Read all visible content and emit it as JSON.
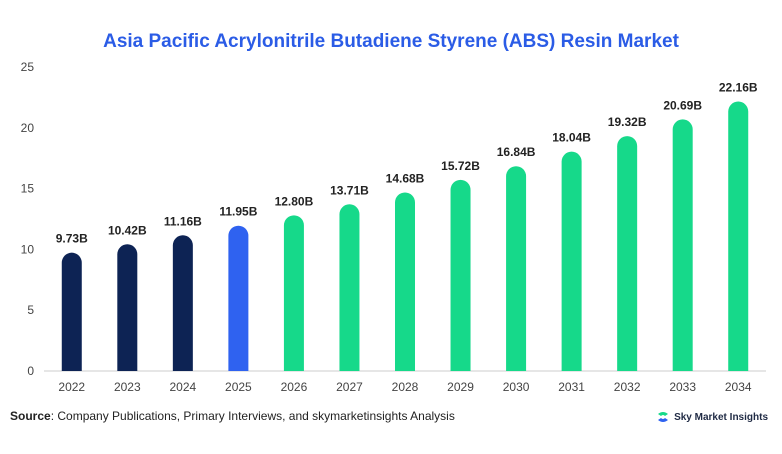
{
  "chart_data": {
    "type": "bar",
    "title": "Asia Pacific Acrylonitrile Butadiene Styrene (ABS) Resin Market",
    "xlabel": "",
    "ylabel": "",
    "categories": [
      "2022",
      "2023",
      "2024",
      "2025",
      "2026",
      "2027",
      "2028",
      "2029",
      "2030",
      "2031",
      "2032",
      "2033",
      "2034"
    ],
    "values": [
      9.73,
      10.42,
      11.16,
      11.95,
      12.8,
      13.71,
      14.68,
      15.72,
      16.84,
      18.04,
      19.32,
      20.69,
      22.16
    ],
    "data_labels": [
      "9.73B",
      "10.42B",
      "11.16B",
      "11.95B",
      "12.80B",
      "13.71B",
      "14.68B",
      "15.72B",
      "16.84B",
      "18.04B",
      "19.32B",
      "20.69B",
      "22.16B"
    ],
    "bar_colors": [
      "#0d2354",
      "#0d2354",
      "#0d2354",
      "#2f62f0",
      "#16d98a",
      "#16d98a",
      "#16d98a",
      "#16d98a",
      "#16d98a",
      "#16d98a",
      "#16d98a",
      "#16d98a",
      "#16d98a"
    ],
    "ylim": [
      0,
      25
    ],
    "yticks": [
      "0",
      "5",
      "10",
      "15",
      "20",
      "25"
    ],
    "grid": false,
    "legend": "none"
  },
  "colors": {
    "title": "#2b5ce6",
    "historical": "#0d2354",
    "current": "#2f62f0",
    "forecast": "#16d98a",
    "axis": "#cccccc"
  },
  "footer": {
    "source_label": "Source",
    "source_text": ": Company Publications, Primary Interviews, and skymarketinsights Analysis",
    "brand_name": "Sky Market Insights",
    "brand_icon": "sky-market-insights-logo-icon"
  }
}
